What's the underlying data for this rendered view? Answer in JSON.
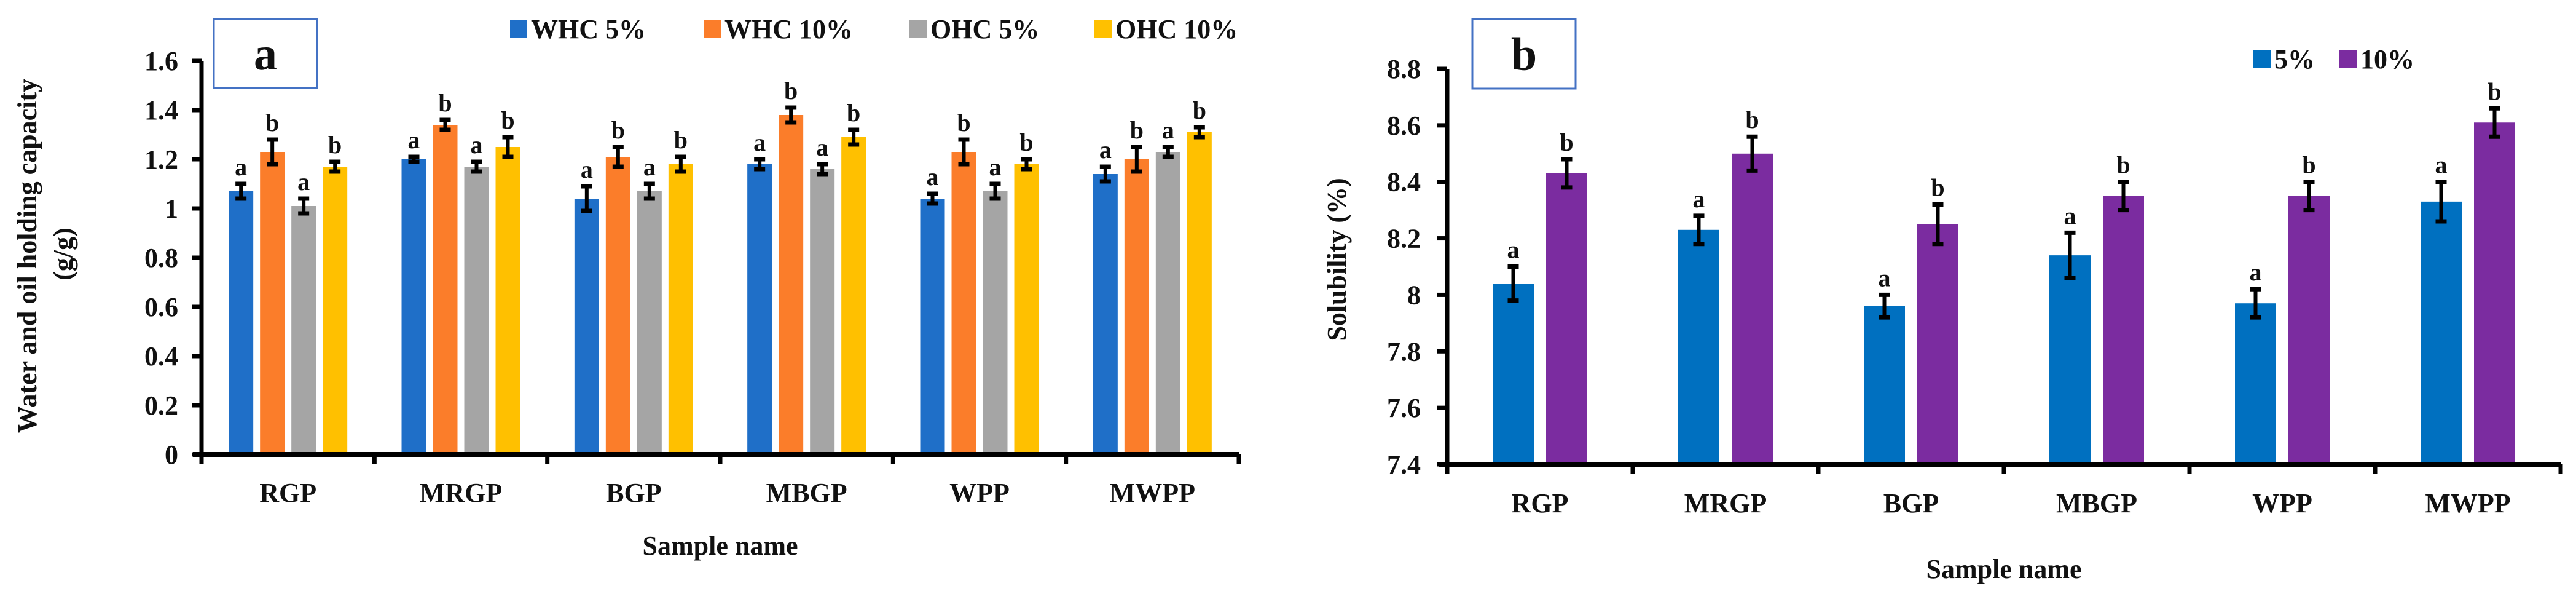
{
  "chart_data": [
    {
      "type": "bar",
      "panel_label": "a",
      "title": "",
      "xlabel": "Sample name",
      "ylabel": "Water and oil holding capacity",
      "ylabel_unit": "(g/g)",
      "ylim": [
        0,
        1.6
      ],
      "yticks": [
        "0",
        "0.2",
        "0.4",
        "0.6",
        "0.8",
        "1",
        "1.2",
        "1.4",
        "1.6"
      ],
      "legend_position": "top-right",
      "categories": [
        "RGP",
        "MRGP",
        "BGP",
        "MBGP",
        "WPP",
        "MWPP"
      ],
      "series": [
        {
          "name": "WHC 5%",
          "color": "#1f6fc8",
          "values": [
            1.07,
            1.2,
            1.04,
            1.18,
            1.04,
            1.14
          ],
          "errors": [
            0.03,
            0.01,
            0.05,
            0.02,
            0.02,
            0.03
          ],
          "letters": [
            "a",
            "a",
            "a",
            "a",
            "a",
            "a"
          ]
        },
        {
          "name": "WHC 10%",
          "color": "#fb7d2a",
          "values": [
            1.23,
            1.34,
            1.21,
            1.38,
            1.23,
            1.2
          ],
          "errors": [
            0.05,
            0.02,
            0.04,
            0.03,
            0.05,
            0.05
          ],
          "letters": [
            "b",
            "b",
            "b",
            "b",
            "b",
            "b"
          ]
        },
        {
          "name": "OHC 5%",
          "color": "#a5a5a5",
          "values": [
            1.01,
            1.17,
            1.07,
            1.16,
            1.07,
            1.23
          ],
          "errors": [
            0.03,
            0.02,
            0.03,
            0.02,
            0.03,
            0.02
          ],
          "letters": [
            "a",
            "a",
            "a",
            "a",
            "a",
            "a"
          ]
        },
        {
          "name": "OHC 10%",
          "color": "#ffc000",
          "values": [
            1.17,
            1.25,
            1.18,
            1.29,
            1.18,
            1.31
          ],
          "errors": [
            0.02,
            0.04,
            0.03,
            0.03,
            0.02,
            0.02
          ],
          "letters": [
            "b",
            "b",
            "b",
            "b",
            "b",
            "b"
          ]
        }
      ]
    },
    {
      "type": "bar",
      "panel_label": "b",
      "title": "",
      "xlabel": "Sample name",
      "ylabel": "Solubility  (%)",
      "ylim": [
        7.4,
        8.8
      ],
      "yticks": [
        "7.4",
        "7.6",
        "7.8",
        "8",
        "8.2",
        "8.4",
        "8.6",
        "8.8"
      ],
      "legend_position": "top-right",
      "categories": [
        "RGP",
        "MRGP",
        "BGP",
        "MBGP",
        "WPP",
        "MWPP"
      ],
      "series": [
        {
          "name": "5%",
          "color": "#0070c0",
          "values": [
            8.04,
            8.23,
            7.96,
            8.14,
            7.97,
            8.33
          ],
          "errors": [
            0.06,
            0.05,
            0.04,
            0.08,
            0.05,
            0.07
          ],
          "letters": [
            "a",
            "a",
            "a",
            "a",
            "a",
            "a"
          ]
        },
        {
          "name": "10%",
          "color": "#7b2ca0",
          "values": [
            8.43,
            8.5,
            8.25,
            8.35,
            8.35,
            8.61
          ],
          "errors": [
            0.05,
            0.06,
            0.07,
            0.05,
            0.05,
            0.05
          ],
          "letters": [
            "b",
            "b",
            "b",
            "b",
            "b",
            "b"
          ]
        }
      ]
    }
  ]
}
